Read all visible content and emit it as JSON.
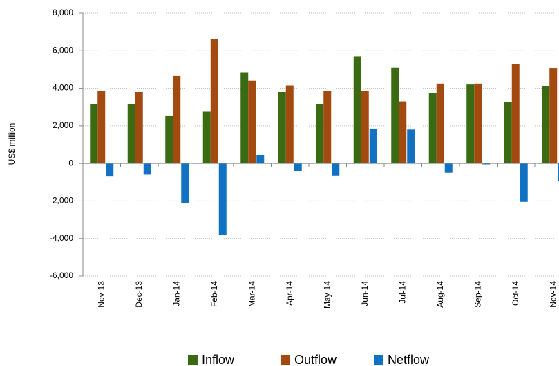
{
  "chart_data": {
    "type": "bar",
    "y_label": "US$ million",
    "categories": [
      "Nov-13",
      "Dec-13",
      "Jan-14",
      "Feb-14",
      "Mar-14",
      "Apr-14",
      "May-14",
      "Jun-14",
      "Jul-14",
      "Aug-14",
      "Sep-14",
      "Oct-14",
      "Nov-14"
    ],
    "series": [
      {
        "name": "Inflow",
        "color": "#3a6b12",
        "values": [
          3150,
          3150,
          2550,
          2750,
          4850,
          3800,
          3150,
          5700,
          5100,
          3750,
          4200,
          3250,
          4100
        ]
      },
      {
        "name": "Outflow",
        "color": "#a24a10",
        "values": [
          3850,
          3800,
          4650,
          6600,
          4400,
          4150,
          3850,
          3850,
          3300,
          4250,
          4250,
          5300,
          5050
        ]
      },
      {
        "name": "Netflow",
        "color": "#1172c4",
        "values": [
          -700,
          -600,
          -2100,
          -3800,
          450,
          -400,
          -650,
          1850,
          1800,
          -500,
          -50,
          -2050,
          -950
        ]
      }
    ],
    "ylim": [
      -6000,
      8000
    ],
    "yticks": [
      {
        "value": -6000,
        "label": "-6,000"
      },
      {
        "value": -4000,
        "label": "-4,000"
      },
      {
        "value": -2000,
        "label": "-2,000"
      },
      0,
      {
        "value": 2000,
        "label": "2,000"
      },
      {
        "value": 4000,
        "label": "4,000"
      },
      {
        "value": 6000,
        "label": "6,000"
      },
      {
        "value": 8000,
        "label": "8,000"
      }
    ],
    "grid": true
  }
}
